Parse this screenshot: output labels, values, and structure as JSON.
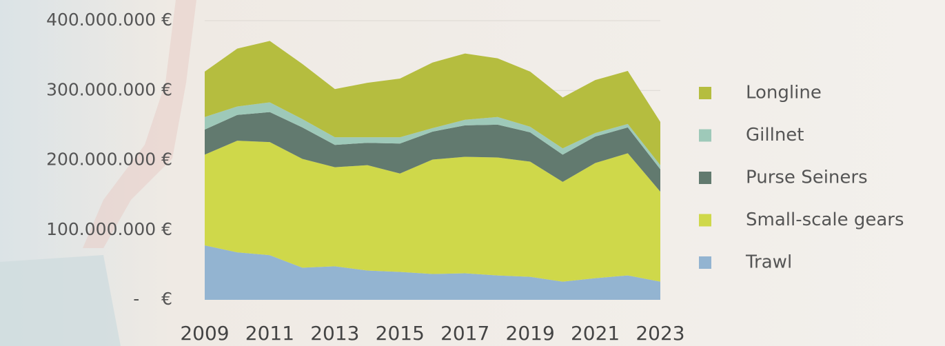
{
  "chart_data": {
    "type": "stacked_area",
    "x": [
      2009,
      2010,
      2011,
      2012,
      2013,
      2014,
      2015,
      2016,
      2017,
      2018,
      2019,
      2020,
      2021,
      2022,
      2023
    ],
    "xlim": [
      2009,
      2023
    ],
    "xticks": [
      2009,
      2011,
      2013,
      2015,
      2017,
      2019,
      2021,
      2023
    ],
    "ylim": [
      0,
      400000000
    ],
    "yticks": [
      {
        "value": 0,
        "label": "-    €"
      },
      {
        "value": 100000000,
        "label": "100.000.000 €"
      },
      {
        "value": 200000000,
        "label": "200.000.000 €"
      },
      {
        "value": 300000000,
        "label": "300.000.000 €"
      },
      {
        "value": 400000000,
        "label": "400.000.000 €"
      }
    ],
    "grid": true,
    "legend": "right",
    "series": [
      {
        "name": "Trawl",
        "color": "#93b4d1",
        "values": [
          78000000,
          68000000,
          64000000,
          46000000,
          48000000,
          42000000,
          40000000,
          37000000,
          38000000,
          35000000,
          33000000,
          26000000,
          31000000,
          35000000,
          26000000
        ]
      },
      {
        "name": "Small-scale gears",
        "color": "#cfd84a",
        "values": [
          130000000,
          160000000,
          162000000,
          156000000,
          142000000,
          151000000,
          141000000,
          164000000,
          167000000,
          169000000,
          165000000,
          143000000,
          165000000,
          175000000,
          129000000
        ]
      },
      {
        "name": "Purse Seiners",
        "color": "#627a6f",
        "values": [
          36000000,
          37000000,
          43000000,
          45000000,
          32000000,
          32000000,
          43000000,
          40000000,
          45000000,
          47000000,
          42000000,
          39000000,
          38000000,
          37000000,
          32000000
        ]
      },
      {
        "name": "Gillnet",
        "color": "#9ec9b9",
        "values": [
          18000000,
          12000000,
          14000000,
          12000000,
          11000000,
          8000000,
          9000000,
          5000000,
          8000000,
          11000000,
          8000000,
          9000000,
          5000000,
          5000000,
          6000000
        ]
      },
      {
        "name": "Longline",
        "color": "#b5bd3f",
        "values": [
          65000000,
          83000000,
          88000000,
          79000000,
          69000000,
          78000000,
          84000000,
          94000000,
          95000000,
          84000000,
          79000000,
          73000000,
          76000000,
          76000000,
          62000000
        ]
      }
    ]
  }
}
